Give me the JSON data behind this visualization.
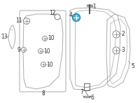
{
  "bg_color": "#ffffff",
  "lc": "#aaaaaa",
  "dc": "#666666",
  "highlight": "#5ab4d0",
  "label_color": "#333333",
  "fig_width": 2.0,
  "fig_height": 1.47,
  "dpi": 100
}
